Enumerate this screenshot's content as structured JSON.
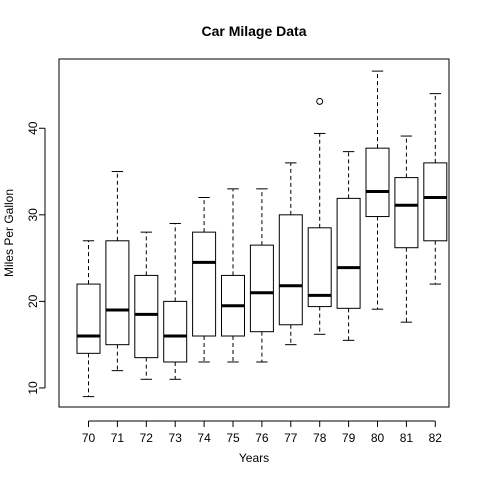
{
  "chart_data": {
    "type": "box",
    "title": "Car Milage Data",
    "xlabel": "Years",
    "ylabel": "Miles Per Gallon",
    "ylim": [
      7.8,
      48
    ],
    "yticks": [
      10,
      20,
      30,
      40
    ],
    "grid": false,
    "categories": [
      "70",
      "71",
      "72",
      "73",
      "74",
      "75",
      "76",
      "77",
      "78",
      "79",
      "80",
      "81",
      "82"
    ],
    "boxes": [
      {
        "category": "70",
        "min": 9,
        "q1": 14,
        "median": 16,
        "q3": 22,
        "max": 27,
        "outliers": []
      },
      {
        "category": "71",
        "min": 12,
        "q1": 15,
        "median": 19,
        "q3": 27,
        "max": 35,
        "outliers": []
      },
      {
        "category": "72",
        "min": 11,
        "q1": 13.5,
        "median": 18.5,
        "q3": 23,
        "max": 28,
        "outliers": []
      },
      {
        "category": "73",
        "min": 11,
        "q1": 13,
        "median": 16,
        "q3": 20,
        "max": 29,
        "outliers": []
      },
      {
        "category": "74",
        "min": 13,
        "q1": 16,
        "median": 24.5,
        "q3": 28,
        "max": 32,
        "outliers": []
      },
      {
        "category": "75",
        "min": 13,
        "q1": 16,
        "median": 19.5,
        "q3": 23,
        "max": 33,
        "outliers": []
      },
      {
        "category": "76",
        "min": 13,
        "q1": 16.5,
        "median": 21,
        "q3": 26.5,
        "max": 33,
        "outliers": []
      },
      {
        "category": "77",
        "min": 15,
        "q1": 17.3,
        "median": 21.8,
        "q3": 30,
        "max": 36,
        "outliers": []
      },
      {
        "category": "78",
        "min": 16.2,
        "q1": 19.4,
        "median": 20.7,
        "q3": 28.5,
        "max": 39.4,
        "outliers": [
          43.1
        ]
      },
      {
        "category": "79",
        "min": 15.5,
        "q1": 19.2,
        "median": 23.9,
        "q3": 31.9,
        "max": 37.3,
        "outliers": []
      },
      {
        "category": "80",
        "min": 19.1,
        "q1": 29.8,
        "median": 32.7,
        "q3": 37.7,
        "max": 46.6,
        "outliers": []
      },
      {
        "category": "81",
        "min": 17.6,
        "q1": 26.2,
        "median": 31.1,
        "q3": 34.3,
        "max": 39.1,
        "outliers": []
      },
      {
        "category": "82",
        "min": 22,
        "q1": 27,
        "median": 32,
        "q3": 36,
        "max": 44,
        "outliers": []
      }
    ]
  }
}
